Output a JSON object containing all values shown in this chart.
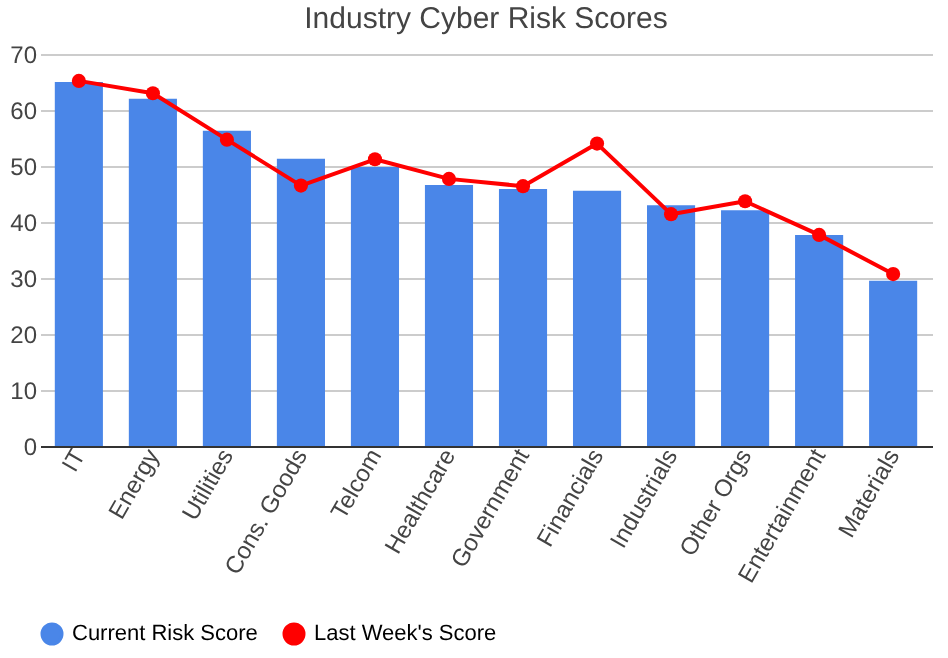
{
  "chart_data": {
    "type": "bar",
    "title": "Industry Cyber Risk Scores",
    "categories": [
      "IT",
      "Energy",
      "Utilities",
      "Cons. Goods",
      "Telcom",
      "Healthcare",
      "Government",
      "Financials",
      "Industrials",
      "Other Orgs",
      "Entertainment",
      "Materials"
    ],
    "series": [
      {
        "name": "Current Risk Score",
        "color": "#4a86e8",
        "values": [
          65,
          62,
          56.3,
          51.3,
          49.8,
          46.6,
          45.9,
          45.6,
          43,
          42.1,
          37.7,
          29.5
        ]
      },
      {
        "name": "Last Week's Score",
        "type": "line",
        "color": "#ff0000",
        "values": [
          65.2,
          63,
          54.7,
          46.5,
          51.2,
          47.7,
          46.4,
          54,
          41.4,
          43.7,
          37.7,
          30.7
        ]
      }
    ],
    "ylim": [
      0,
      70
    ],
    "yticks": [
      0,
      10,
      20,
      30,
      40,
      50,
      60,
      70
    ],
    "grid": "y",
    "legend": "bottom",
    "marker": "circle"
  }
}
